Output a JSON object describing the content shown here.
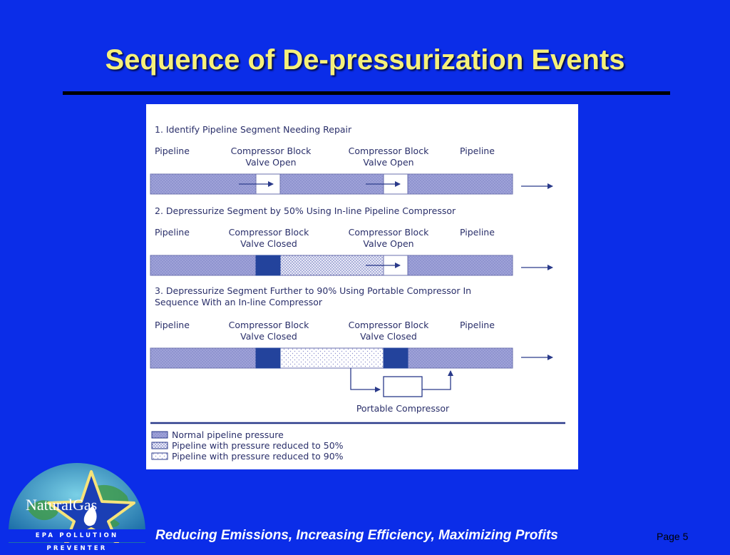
{
  "slide": {
    "title": "Sequence of De-pressurization Events",
    "footer": "Reducing Emissions, Increasing Efficiency, Maximizing Profits",
    "page": "Page 5"
  },
  "logo": {
    "brand": "NaturalGas",
    "tagline": "EPA  POLLUTION  PREVENTER"
  },
  "colors": {
    "background": "#0b2de8",
    "title": "#f6f07a",
    "pipe_normal": "#8f93cf",
    "valve_closed": "#23439c"
  },
  "diagram": {
    "step1": {
      "heading": "1. Identify Pipeline Segment Needing Repair",
      "labels": {
        "pipeline_left": "Pipeline",
        "block_left_1": "Compressor Block",
        "block_left_2": "Valve Open",
        "block_right_1": "Compressor Block",
        "block_right_2": "Valve Open",
        "pipeline_right": "Pipeline"
      }
    },
    "step2": {
      "heading": "2. Depressurize Segment by 50% Using In-line Pipeline Compressor",
      "labels": {
        "pipeline_left": "Pipeline",
        "block_left_1": "Compressor Block",
        "block_left_2": "Valve Closed",
        "block_right_1": "Compressor Block",
        "block_right_2": "Valve Open",
        "pipeline_right": "Pipeline"
      }
    },
    "step3": {
      "heading_line1": "3. Depressurize Segment Further to 90% Using Portable Compressor In",
      "heading_line2": "Sequence With an In-line Compressor",
      "labels": {
        "pipeline_left": "Pipeline",
        "block_left_1": "Compressor Block",
        "block_left_2": "Valve Closed",
        "block_right_1": "Compressor Block",
        "block_right_2": "Valve Closed",
        "pipeline_right": "Pipeline"
      },
      "portable_compressor": "Portable Compressor"
    },
    "legend": {
      "normal": "Normal pipeline pressure",
      "reduced50": "Pipeline with pressure reduced to 50%",
      "reduced90": "Pipeline with pressure reduced to 90%"
    }
  }
}
